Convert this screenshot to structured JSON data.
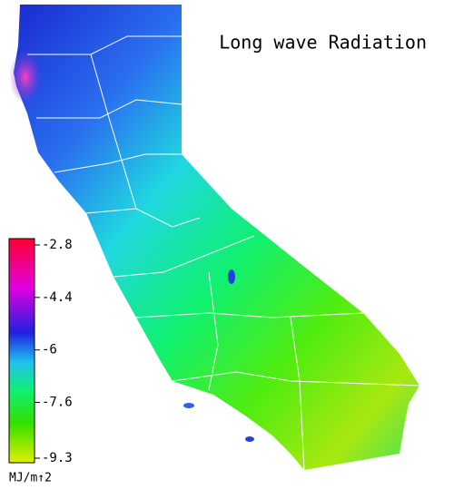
{
  "title": "Long wave Radiation",
  "colorbar": {
    "lim": [
      -9.3,
      -2.8
    ],
    "ticks": [
      -2.8,
      -4.4,
      -6.0,
      -7.6,
      -9.3
    ],
    "unit": "MJ/m↑2"
  }
}
